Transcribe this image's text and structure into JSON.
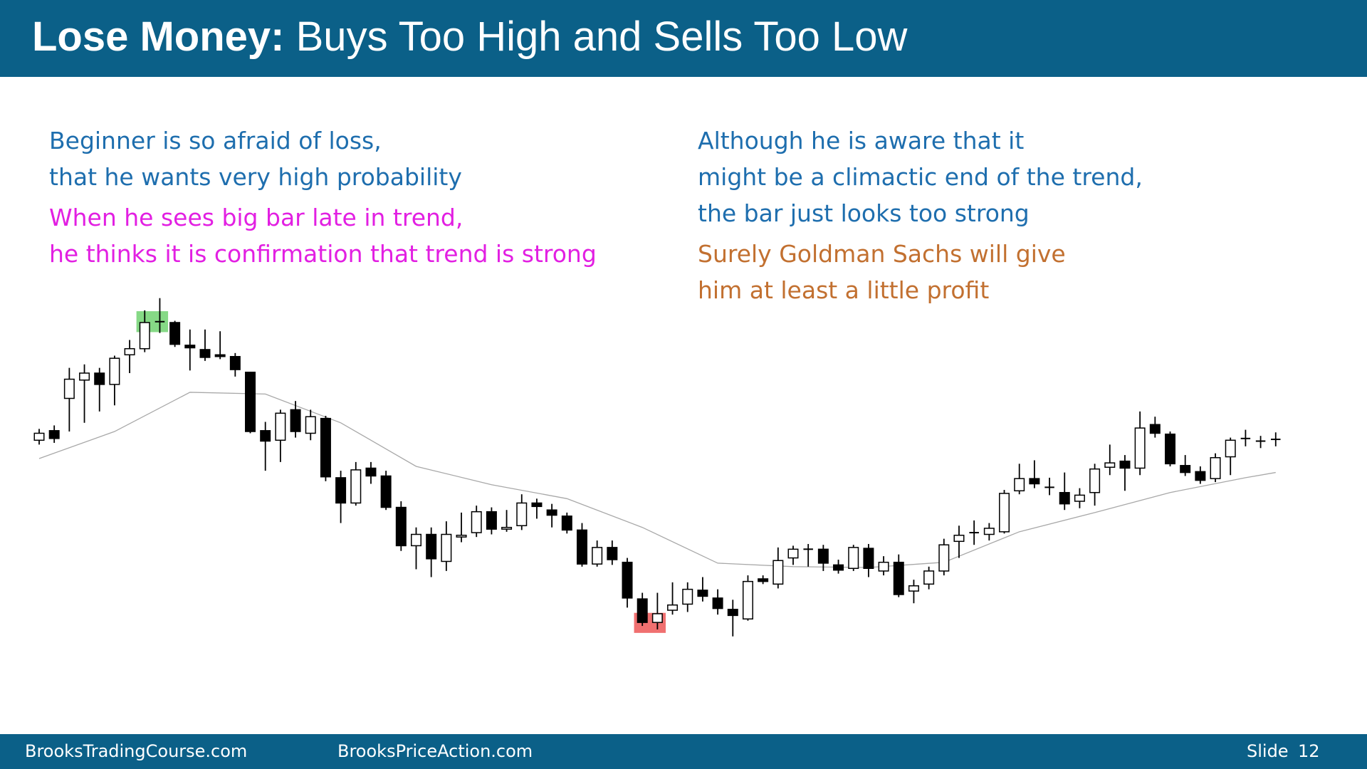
{
  "header": {
    "title_bold": "Lose Money:",
    "title_rest": "Buys Too High and Sells Too Low"
  },
  "left_text": {
    "blue": [
      "Beginner is so afraid of loss,",
      "that he wants very high probability"
    ],
    "magenta": [
      "When he sees big bar late in trend,",
      "he thinks it is confirmation that trend is strong"
    ]
  },
  "right_text": {
    "blue": [
      "Although he is aware that it",
      "might be a climactic end of the trend,",
      "the bar just looks too strong"
    ],
    "orange": [
      "Surely Goldman Sachs will give",
      "him at least a little profit"
    ]
  },
  "chart_data": {
    "type": "candlestick",
    "open": [
      295,
      306,
      343,
      364,
      372,
      359,
      393,
      400,
      431,
      430,
      404,
      399,
      393,
      391,
      373,
      306,
      295,
      330,
      303,
      320,
      252,
      223,
      263,
      254,
      218,
      174,
      187,
      156,
      184,
      189,
      213,
      193,
      197,
      223,
      215,
      208,
      192,
      153,
      172,
      155,
      113,
      86,
      100,
      107,
      123,
      114,
      101,
      90,
      136,
      130,
      160,
      170,
      170,
      152,
      148,
      171,
      145,
      155,
      122,
      130,
      145,
      179,
      189,
      187,
      190,
      237,
      251,
      241,
      235,
      225,
      235,
      264,
      271,
      263,
      313,
      302,
      266,
      259,
      251,
      276,
      297,
      294,
      296
    ],
    "high": [
      308,
      312,
      378,
      382,
      378,
      392,
      410,
      444,
      458,
      432,
      422,
      422,
      420,
      395,
      373,
      316,
      330,
      340,
      330,
      323,
      260,
      270,
      270,
      260,
      225,
      195,
      195,
      202,
      212,
      220,
      218,
      215,
      233,
      228,
      222,
      212,
      200,
      180,
      180,
      160,
      120,
      120,
      132,
      132,
      138,
      124,
      112,
      140,
      140,
      172,
      174,
      176,
      175,
      158,
      175,
      176,
      162,
      164,
      135,
      150,
      182,
      197,
      203,
      200,
      238,
      268,
      272,
      252,
      258,
      240,
      268,
      290,
      278,
      328,
      322,
      305,
      278,
      265,
      280,
      298,
      307,
      300,
      304
    ],
    "low": [
      290,
      292,
      305,
      315,
      328,
      335,
      372,
      396,
      418,
      402,
      375,
      386,
      388,
      368,
      303,
      260,
      270,
      298,
      295,
      248,
      200,
      220,
      245,
      215,
      168,
      147,
      138,
      145,
      178,
      184,
      187,
      190,
      192,
      205,
      195,
      188,
      150,
      150,
      152,
      103,
      82,
      78,
      95,
      98,
      110,
      95,
      70,
      88,
      130,
      125,
      152,
      150,
      145,
      142,
      145,
      138,
      140,
      115,
      108,
      124,
      140,
      160,
      175,
      180,
      188,
      233,
      240,
      232,
      215,
      217,
      220,
      255,
      237,
      255,
      298,
      265,
      254,
      245,
      247,
      255,
      288,
      286,
      288
    ],
    "close": [
      303,
      297,
      365,
      372,
      359,
      389,
      400,
      430,
      431,
      405,
      401,
      390,
      391,
      376,
      305,
      294,
      326,
      305,
      322,
      253,
      223,
      261,
      254,
      218,
      174,
      187,
      159,
      187,
      186,
      213,
      193,
      195,
      223,
      219,
      209,
      192,
      153,
      172,
      158,
      114,
      86,
      96,
      106,
      124,
      116,
      102,
      94,
      133,
      133,
      157,
      170,
      170,
      154,
      146,
      172,
      148,
      155,
      118,
      128,
      145,
      175,
      186,
      189,
      194,
      234,
      251,
      245,
      241,
      222,
      232,
      262,
      269,
      263,
      309,
      303,
      268,
      258,
      249,
      275,
      295,
      297,
      294,
      296
    ],
    "up_color": "#ffffff",
    "down_color": "#000000",
    "ylim": [
      60,
      470
    ],
    "moving_average": {
      "x": [
        0,
        5,
        10,
        15,
        20,
        25,
        30,
        35,
        40,
        45,
        50,
        55,
        60,
        65,
        70,
        75,
        80,
        82
      ],
      "values": [
        274,
        305,
        350,
        348,
        315,
        265,
        244,
        228,
        195,
        154,
        150,
        149,
        155,
        190,
        212,
        235,
        252,
        258
      ],
      "color": "#a8a8a8"
    },
    "highlights": [
      {
        "from": 7,
        "to": 8,
        "ylim": [
          419,
          443
        ],
        "color": "#86d986"
      },
      {
        "from": 40,
        "to": 41,
        "ylim": [
          74,
          97
        ],
        "color": "#f07070"
      }
    ]
  },
  "footer": {
    "left": "BrooksTradingCourse.com",
    "center": "BrooksPriceAction.com",
    "slide_label": "Slide",
    "slide_number": "12"
  }
}
